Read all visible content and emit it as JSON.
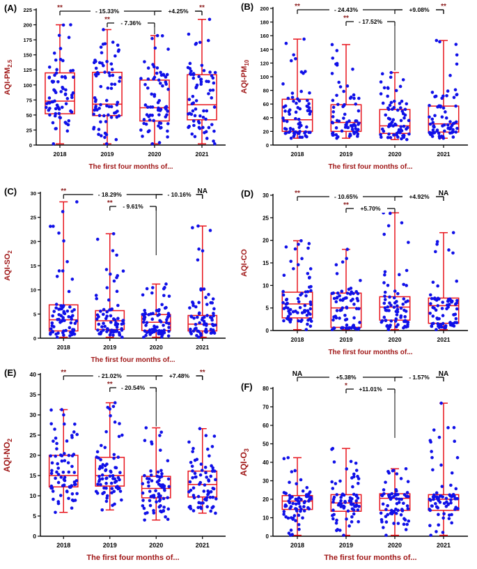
{
  "colors": {
    "box": "#e8141c",
    "dot": "#1010e8",
    "axis": "#000000",
    "title": "#a01818",
    "sig": "#8b1a1a"
  },
  "chart_data": [
    {
      "type": "boxplot",
      "panel_label": "(A)",
      "ylabel": "AQI-PM",
      "ylabel_sub": "2.5",
      "xlabel": "The first four months of...",
      "categories": [
        "2018",
        "2019",
        "2020",
        "2021"
      ],
      "ylim": [
        0,
        225
      ],
      "yticks": [
        0,
        25,
        50,
        75,
        100,
        125,
        150,
        175,
        200,
        225
      ],
      "boxes": [
        {
          "min": 2,
          "q1": 52,
          "median": 73,
          "q3": 120,
          "max": 200
        },
        {
          "min": 2,
          "q1": 49,
          "median": 68,
          "q3": 121,
          "max": 192
        },
        {
          "min": 2,
          "q1": 40,
          "median": 62,
          "q3": 108,
          "max": 182
        },
        {
          "min": 2,
          "q1": 42,
          "median": 67,
          "q3": 117,
          "max": 209
        }
      ],
      "comparisons": [
        {
          "from": 0,
          "to": 3,
          "label": "- 15.33%",
          "left_sig": "**",
          "right_sig": "",
          "level": 0
        },
        {
          "from": 2,
          "to": 3,
          "label": "+4.25%",
          "left_sig": "",
          "right_sig": "**",
          "level": 0
        },
        {
          "from": 1,
          "to": 2,
          "label": "- 7.36%",
          "left_sig": "**",
          "right_sig": "",
          "level": 1
        }
      ]
    },
    {
      "type": "boxplot",
      "panel_label": "(B)",
      "ylabel": "AQI-PM",
      "ylabel_sub": "10",
      "xlabel": "The first four months of...",
      "categories": [
        "2018",
        "2019",
        "2020",
        "2021"
      ],
      "ylim": [
        0,
        200
      ],
      "yticks": [
        0,
        20,
        40,
        60,
        80,
        100,
        120,
        140,
        160,
        180,
        200
      ],
      "boxes": [
        {
          "min": 10,
          "q1": 20,
          "median": 37,
          "q3": 67,
          "max": 155
        },
        {
          "min": 10,
          "q1": 20,
          "median": 33,
          "q3": 59,
          "max": 147
        },
        {
          "min": 8,
          "q1": 17,
          "median": 28,
          "q3": 52,
          "max": 106
        },
        {
          "min": 10,
          "q1": 19,
          "median": 31,
          "q3": 57,
          "max": 153
        }
      ],
      "comparisons": [
        {
          "from": 0,
          "to": 3,
          "label": "- 24.43%",
          "left_sig": "**",
          "right_sig": "",
          "level": 0
        },
        {
          "from": 2,
          "to": 3,
          "label": "+9.08%",
          "left_sig": "",
          "right_sig": "**",
          "level": 0
        },
        {
          "from": 1,
          "to": 2,
          "label": "- 17.52%",
          "left_sig": "**",
          "right_sig": "",
          "level": 1
        }
      ]
    },
    {
      "type": "boxplot",
      "panel_label": "(C)",
      "ylabel": "AQI-SO",
      "ylabel_sub": "2",
      "xlabel": "The first four months of...",
      "categories": [
        "2018",
        "2019",
        "2020",
        "2021"
      ],
      "ylim": [
        0,
        30
      ],
      "yticks": [
        0,
        5,
        10,
        15,
        20,
        25,
        30
      ],
      "boxes": [
        {
          "min": 0.2,
          "q1": 1.5,
          "median": 3.8,
          "q3": 6.9,
          "max": 28.2
        },
        {
          "min": 0.2,
          "q1": 1.8,
          "median": 3.6,
          "q3": 5.7,
          "max": 21.6
        },
        {
          "min": 0.2,
          "q1": 1.6,
          "median": 3.3,
          "q3": 4.9,
          "max": 11.2
        },
        {
          "min": 0.2,
          "q1": 1.5,
          "median": 2.9,
          "q3": 4.7,
          "max": 23.2
        }
      ],
      "comparisons": [
        {
          "from": 0,
          "to": 3,
          "label": "- 18.29%",
          "left_sig": "**",
          "right_sig": "",
          "level": 0
        },
        {
          "from": 2,
          "to": 3,
          "label": "- 10.16%",
          "left_sig": "",
          "right_sig": "NA",
          "level": 0
        },
        {
          "from": 1,
          "to": 2,
          "label": "- 9.61%",
          "left_sig": "**",
          "right_sig": "",
          "level": 1
        }
      ]
    },
    {
      "type": "boxplot",
      "panel_label": "(D)",
      "ylabel": "AQI-CO",
      "ylabel_sub": "",
      "xlabel": "The first four months of...",
      "categories": [
        "2018",
        "2019",
        "2020",
        "2021"
      ],
      "ylim": [
        0,
        30
      ],
      "yticks": [
        0,
        5,
        10,
        15,
        20,
        25,
        30
      ],
      "boxes": [
        {
          "min": 0.2,
          "q1": 2.8,
          "median": 5.9,
          "q3": 8.5,
          "max": 19.9
        },
        {
          "min": 0.2,
          "q1": 0.7,
          "median": 5.0,
          "q3": 8.3,
          "max": 18.0
        },
        {
          "min": 0.2,
          "q1": 2.3,
          "median": 5.2,
          "q3": 7.5,
          "max": 26.1
        },
        {
          "min": 0.2,
          "q1": 1.6,
          "median": 5.5,
          "q3": 7.2,
          "max": 21.7
        }
      ],
      "comparisons": [
        {
          "from": 0,
          "to": 3,
          "label": "- 10.65%",
          "left_sig": "**",
          "right_sig": "",
          "level": 0
        },
        {
          "from": 2,
          "to": 3,
          "label": "+4.92%",
          "left_sig": "",
          "right_sig": "NA",
          "level": 0
        },
        {
          "from": 1,
          "to": 2,
          "label": "+5.70%",
          "left_sig": "**",
          "right_sig": "",
          "level": 1
        }
      ]
    },
    {
      "type": "boxplot",
      "panel_label": "(E)",
      "ylabel": "AQI-NO",
      "ylabel_sub": "2",
      "xlabel": "The first four months of...",
      "categories": [
        "2018",
        "2019",
        "2020",
        "2021"
      ],
      "ylim": [
        0,
        40
      ],
      "yticks": [
        0,
        5,
        10,
        15,
        20,
        25,
        30,
        35,
        40
      ],
      "boxes": [
        {
          "min": 5.9,
          "q1": 12.2,
          "median": 15.0,
          "q3": 20.0,
          "max": 31.3
        },
        {
          "min": 6.5,
          "q1": 12.4,
          "median": 15.0,
          "q3": 19.5,
          "max": 33.0
        },
        {
          "min": 4.0,
          "q1": 9.5,
          "median": 11.8,
          "q3": 14.8,
          "max": 26.8
        },
        {
          "min": 5.7,
          "q1": 9.7,
          "median": 12.8,
          "q3": 16.1,
          "max": 26.6
        }
      ],
      "comparisons": [
        {
          "from": 0,
          "to": 3,
          "label": "- 21.02%",
          "left_sig": "**",
          "right_sig": "",
          "level": 0
        },
        {
          "from": 2,
          "to": 3,
          "label": "+7.48%",
          "left_sig": "",
          "right_sig": "**",
          "level": 0
        },
        {
          "from": 1,
          "to": 2,
          "label": "- 20.54%",
          "left_sig": "**",
          "right_sig": "",
          "level": 1
        }
      ]
    },
    {
      "type": "boxplot",
      "panel_label": "(F)",
      "ylabel": "AQI-O",
      "ylabel_sub": "3",
      "xlabel": "The first four months of...",
      "categories": [
        "2018",
        "2019",
        "2020",
        "2021"
      ],
      "ylim": [
        0,
        80
      ],
      "yticks": [
        0,
        10,
        20,
        30,
        40,
        50,
        60,
        70,
        80
      ],
      "boxes": [
        {
          "min": 0.5,
          "q1": 14.5,
          "median": 19.0,
          "q3": 22.0,
          "max": 42.5
        },
        {
          "min": 0.5,
          "q1": 13.5,
          "median": 18.0,
          "q3": 22.5,
          "max": 47.5
        },
        {
          "min": 0.5,
          "q1": 14.0,
          "median": 20.5,
          "q3": 23.0,
          "max": 36.5
        },
        {
          "min": 0.5,
          "q1": 14.0,
          "median": 20.0,
          "q3": 22.5,
          "max": 72.0
        }
      ],
      "comparisons": [
        {
          "from": 0,
          "to": 3,
          "label": "+5.38%",
          "left_sig": "NA",
          "right_sig": "",
          "level": 0
        },
        {
          "from": 2,
          "to": 3,
          "label": "- 1.57%",
          "left_sig": "",
          "right_sig": "NA",
          "level": 0
        },
        {
          "from": 1,
          "to": 2,
          "label": "+11.01%",
          "left_sig": "*",
          "right_sig": "",
          "level": 1
        }
      ]
    }
  ]
}
